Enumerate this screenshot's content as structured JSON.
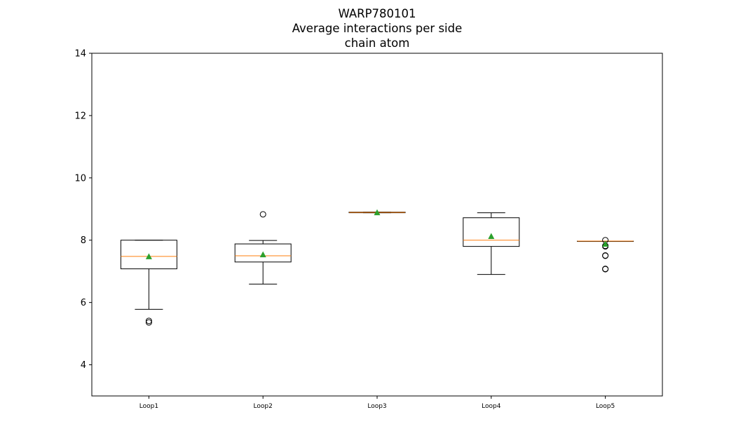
{
  "chart_data": {
    "type": "box",
    "title_lines": [
      "WARP780101",
      "Average interactions per side",
      "chain atom"
    ],
    "xlabel": "",
    "ylabel": "",
    "ylim": [
      3,
      14
    ],
    "yticks": [
      4,
      6,
      8,
      10,
      12,
      14
    ],
    "categories": [
      "Loop1",
      "Loop2",
      "Loop3",
      "Loop4",
      "Loop5"
    ],
    "boxes": [
      {
        "category": "Loop1",
        "whisker_low": 5.78,
        "q1": 7.08,
        "median": 7.48,
        "q3": 8.0,
        "whisker_high": 8.0,
        "mean": 7.48,
        "outliers": [
          5.36,
          5.41
        ]
      },
      {
        "category": "Loop2",
        "whisker_low": 6.59,
        "q1": 7.3,
        "median": 7.5,
        "q3": 7.88,
        "whisker_high": 7.99,
        "mean": 7.54,
        "outliers": [
          8.83
        ]
      },
      {
        "category": "Loop3",
        "whisker_low": 8.88,
        "q1": 8.88,
        "median": 8.89,
        "q3": 8.9,
        "whisker_high": 8.9,
        "mean": 8.89,
        "outliers": []
      },
      {
        "category": "Loop4",
        "whisker_low": 6.9,
        "q1": 7.8,
        "median": 8.0,
        "q3": 8.72,
        "whisker_high": 8.88,
        "mean": 8.13,
        "outliers": []
      },
      {
        "category": "Loop5",
        "whisker_low": 7.97,
        "q1": 7.97,
        "median": 7.97,
        "q3": 7.97,
        "whisker_high": 7.97,
        "mean": 7.88,
        "outliers": [
          8.0,
          7.8,
          7.82,
          7.5,
          7.51,
          7.08,
          7.07
        ]
      }
    ],
    "colors": {
      "box": "#000000",
      "median": "#ff7f0e",
      "mean": "#2ca02c",
      "outlier": "#000000"
    },
    "grid": false,
    "legend": "none"
  }
}
